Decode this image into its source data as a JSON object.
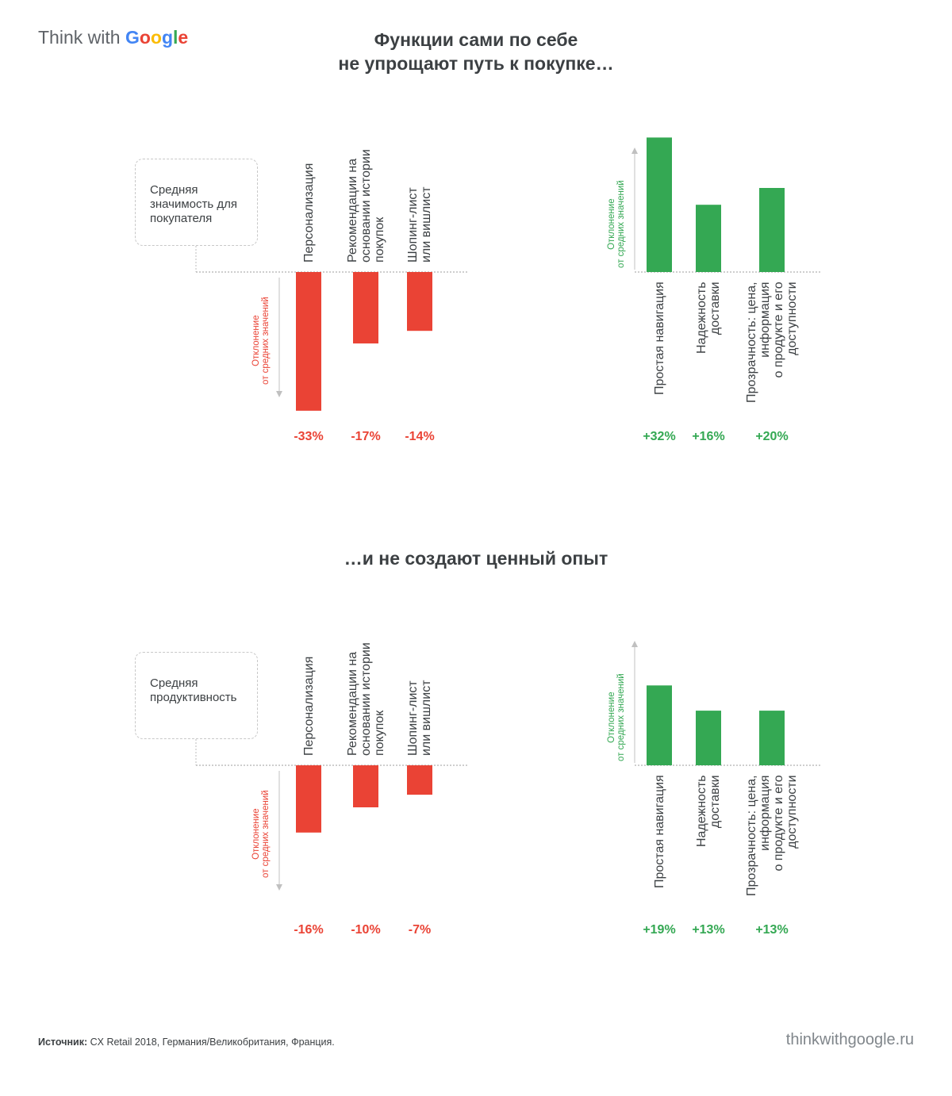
{
  "logo": {
    "prefix": "Think with ",
    "brand_letters": [
      {
        "ch": "G",
        "color": "#4285f4"
      },
      {
        "ch": "o",
        "color": "#ea4335"
      },
      {
        "ch": "o",
        "color": "#fbbc05"
      },
      {
        "ch": "g",
        "color": "#4285f4"
      },
      {
        "ch": "l",
        "color": "#34a853"
      },
      {
        "ch": "e",
        "color": "#ea4335"
      }
    ]
  },
  "section1": {
    "title_line1": "Функции сами по себе",
    "title_line2": "не упрощают путь к покупке…"
  },
  "section2": {
    "title": "…и не создают ценный опыт"
  },
  "colors": {
    "negative": "#ea4335",
    "positive": "#34a853",
    "text": "#3c4043"
  },
  "chart_data": [
    {
      "type": "bar",
      "metric": "Средняя значимость для покупателя",
      "axis_label": [
        "Отклонение",
        "от средних значений"
      ],
      "series": [
        {
          "direction": "negative",
          "categories": [
            "Персонализация",
            "Рекомендации на основании истории покупок",
            "Шопинг-лист или вишлист"
          ],
          "category_lines": [
            [
              "Персонализация"
            ],
            [
              "Рекомендации на",
              "основании истории",
              "покупок"
            ],
            [
              "Шопинг-лист",
              "или вишлист"
            ]
          ],
          "values": [
            -33,
            -17,
            -14
          ],
          "labels": [
            "-33%",
            "-17%",
            "-14%"
          ]
        },
        {
          "direction": "positive",
          "categories": [
            "Простая навигация",
            "Надежность доставки",
            "Прозрачность: цена, информация о продукте и его доступности"
          ],
          "category_lines": [
            [
              "Простая навигация"
            ],
            [
              "Надежность",
              "доставки"
            ],
            [
              "Прозрачность: цена,",
              "информация",
              "о продукте и его",
              "доступности"
            ]
          ],
          "values": [
            32,
            16,
            20
          ],
          "labels": [
            "+32%",
            "+16%",
            "+20%"
          ]
        }
      ]
    },
    {
      "type": "bar",
      "metric": "Средняя продуктивность",
      "axis_label": [
        "Отклонение",
        "от средних значений"
      ],
      "series": [
        {
          "direction": "negative",
          "categories": [
            "Персонализация",
            "Рекомендации на основании истории покупок",
            "Шопинг-лист или вишлист"
          ],
          "category_lines": [
            [
              "Персонализация"
            ],
            [
              "Рекомендации на",
              "основании истории",
              "покупок"
            ],
            [
              "Шопинг-лист",
              "или вишлист"
            ]
          ],
          "values": [
            -16,
            -10,
            -7
          ],
          "labels": [
            "-16%",
            "-10%",
            "-7%"
          ]
        },
        {
          "direction": "positive",
          "categories": [
            "Простая навигация",
            "Надежность доставки",
            "Прозрачность: цена, информация о продукте и его доступности"
          ],
          "category_lines": [
            [
              "Простая навигация"
            ],
            [
              "Надежность",
              "доставки"
            ],
            [
              "Прозрачность: цена,",
              "информация",
              "о продукте и его",
              "доступности"
            ]
          ],
          "values": [
            19,
            13,
            13
          ],
          "labels": [
            "+19%",
            "+13%",
            "+13%"
          ]
        }
      ]
    }
  ],
  "footer": {
    "source_label": "Источник:",
    "source_text": " CX Retail 2018, Германия/Великобритания, Франция.",
    "url": "thinkwithgoogle.ru"
  }
}
